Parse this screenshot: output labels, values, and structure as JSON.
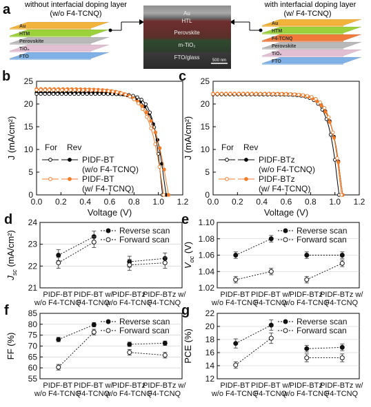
{
  "panel_a": {
    "label": "a",
    "left_caption": [
      "without interfacial doping layer",
      "(w/o F4-TCNQ)"
    ],
    "right_caption": [
      "with interfacial doping layer",
      "(w/  F4-TCNQ)"
    ],
    "left_layers": [
      "Au",
      "HTM",
      "Perovskite",
      "TiO₂",
      "FTO"
    ],
    "right_layers": [
      "Au",
      "HTM",
      "F4-TCNQ",
      "Perovskite",
      "TiO₂",
      "FTO"
    ],
    "sem_labels": [
      "Au",
      "HTL",
      "Perovskite",
      "m-TiO₂",
      "FTO/glass"
    ],
    "scale_bar": "500 nm",
    "colors": {
      "au": "#f2b33a",
      "htm": "#9bd13a",
      "f4tcnq": "#ef7a3a",
      "perovskite": "#b9b9b9",
      "tio2": "#e3bfd4",
      "fto": "#7fb1e6"
    }
  },
  "chart_data": [
    {
      "id": "b",
      "type": "line",
      "label": "b",
      "xlabel": "Voltage (V)",
      "ylabel": "J (mA/cm²)",
      "xlim": [
        0.0,
        1.2
      ],
      "ylim": [
        0,
        25
      ],
      "xticks": [
        "0.0",
        "0.2",
        "0.4",
        "0.6",
        "0.8",
        "1.0",
        "1.2"
      ],
      "yticks": [
        "0",
        "5",
        "10",
        "15",
        "20",
        "25"
      ],
      "legend_header": [
        "For",
        "Rev"
      ],
      "legend": [
        {
          "name_lines": [
            "PIDF-BT",
            "(w/o F4-TCNQ)"
          ],
          "color": "#000000"
        },
        {
          "name_lines": [
            "PIDF-BT",
            "(w/  F4-TCNQ)"
          ],
          "color": "#f07b28"
        }
      ],
      "series": [
        {
          "scan": "Rev",
          "group": 0,
          "marker": "filled",
          "color": "#000000",
          "jsc": 22.5,
          "voc": 1.06,
          "ff": 0.73
        },
        {
          "scan": "For",
          "group": 0,
          "marker": "open",
          "color": "#000000",
          "jsc": 22.2,
          "voc": 1.03,
          "ff": 0.6
        },
        {
          "scan": "Rev",
          "group": 1,
          "marker": "filled",
          "color": "#f07b28",
          "jsc": 23.3,
          "voc": 1.08,
          "ff": 0.8
        },
        {
          "scan": "For",
          "group": 1,
          "marker": "open",
          "color": "#f07b28",
          "jsc": 23.1,
          "voc": 1.04,
          "ff": 0.765
        }
      ]
    },
    {
      "id": "c",
      "type": "line",
      "label": "c",
      "xlabel": "Voltage (V)",
      "ylabel": "J (mA/cm²)",
      "xlim": [
        0.0,
        1.2
      ],
      "ylim": [
        0,
        25
      ],
      "xticks": [
        "0.0",
        "0.2",
        "0.4",
        "0.6",
        "0.8",
        "1.0",
        "1.2"
      ],
      "yticks": [
        "0",
        "5",
        "10",
        "15",
        "20",
        "25"
      ],
      "legend_header": [
        "For",
        "Rev"
      ],
      "legend": [
        {
          "name_lines": [
            "PIDF-BTz",
            "(w/o F4-TCNQ)"
          ],
          "color": "#000000"
        },
        {
          "name_lines": [
            "PIDF-BTz",
            "(w/  F4-TCNQ)"
          ],
          "color": "#f07b28"
        }
      ],
      "series": [
        {
          "scan": "Rev",
          "group": 0,
          "marker": "filled",
          "color": "#000000",
          "jsc": 22.2,
          "voc": 1.06,
          "ff": 0.7
        },
        {
          "scan": "For",
          "group": 0,
          "marker": "open",
          "color": "#000000",
          "jsc": 22.1,
          "voc": 1.03,
          "ff": 0.67
        },
        {
          "scan": "Rev",
          "group": 1,
          "marker": "filled",
          "color": "#f07b28",
          "jsc": 22.3,
          "voc": 1.06,
          "ff": 0.71
        },
        {
          "scan": "For",
          "group": 1,
          "marker": "open",
          "color": "#f07b28",
          "jsc": 22.2,
          "voc": 1.05,
          "ff": 0.66
        }
      ]
    },
    {
      "id": "d",
      "type": "scatter",
      "label": "d",
      "ylabel_main": "J",
      "ylabel_sub": "sc",
      "ylabel_rest": " (mA/cm²)",
      "ylim": [
        21,
        24
      ],
      "yticks": [
        "21",
        "22",
        "23",
        "24"
      ],
      "categories": [
        [
          "PIDF-BT",
          "w/o F4-TCNQ"
        ],
        [
          "PIDF-BT w/",
          "F4-TCNQ"
        ],
        [
          "PIDF-BTz",
          "w/o F4-TCNQ"
        ],
        [
          "PIDF-BTz w/",
          "F4-TCNQ"
        ]
      ],
      "series": [
        {
          "name": "Reverse scan",
          "marker": "filled",
          "values": [
            22.5,
            23.35,
            22.2,
            22.35
          ],
          "err": [
            0.25,
            0.25,
            0.25,
            0.25
          ]
        },
        {
          "name": "Forward scan",
          "marker": "open",
          "values": [
            22.15,
            23.1,
            22.05,
            22.15
          ],
          "err": [
            0.25,
            0.25,
            0.25,
            0.25
          ]
        }
      ]
    },
    {
      "id": "e",
      "type": "scatter",
      "label": "e",
      "ylabel_main": "V",
      "ylabel_sub": "oc",
      "ylabel_rest": " (V)",
      "ylim": [
        1.02,
        1.1
      ],
      "yticks": [
        "1.02",
        "1.04",
        "1.06",
        "1.08",
        "1.10"
      ],
      "categories": [
        [
          "PIDF-BT",
          "w/o F4-TCNQ"
        ],
        [
          "PIDF-BT w/",
          "F4-TCNQ"
        ],
        [
          "PIDF-BTz",
          "w/o F4-TCNQ"
        ],
        [
          "PIDF-BTz w/",
          "F4-TCNQ"
        ]
      ],
      "series": [
        {
          "name": "Reverse scan",
          "marker": "filled",
          "values": [
            1.06,
            1.08,
            1.06,
            1.06
          ],
          "err": [
            0.004,
            0.004,
            0.004,
            0.004
          ]
        },
        {
          "name": "Forward scan",
          "marker": "open",
          "values": [
            1.03,
            1.04,
            1.03,
            1.05
          ],
          "err": [
            0.004,
            0.004,
            0.004,
            0.004
          ]
        }
      ]
    },
    {
      "id": "f",
      "type": "scatter",
      "label": "f",
      "ylabel_main": "FF (%)",
      "ylabel_sub": "",
      "ylabel_rest": "",
      "ylim": [
        55,
        85
      ],
      "yticks": [
        "55",
        "60",
        "65",
        "70",
        "75",
        "80",
        "85"
      ],
      "categories": [
        [
          "PIDF-BT",
          "w/o F4-TCNQ"
        ],
        [
          "PIDF-BT w/",
          "F4-TCNQ"
        ],
        [
          "PIDF-BTz",
          "w/o F4-TCNQ"
        ],
        [
          "PIDF-BTz w/",
          "F4-TCNQ"
        ]
      ],
      "series": [
        {
          "name": "Reverse scan",
          "marker": "filled",
          "values": [
            73.0,
            79.8,
            70.8,
            71.3
          ],
          "err": [
            1.0,
            1.0,
            1.0,
            1.0
          ]
        },
        {
          "name": "Forward scan",
          "marker": "open",
          "values": [
            60.3,
            76.4,
            67.1,
            65.8
          ],
          "err": [
            1.3,
            1.3,
            1.3,
            1.3
          ]
        }
      ]
    },
    {
      "id": "g",
      "type": "scatter",
      "label": "g",
      "ylabel_main": "PCE (%)",
      "ylabel_sub": "",
      "ylabel_rest": "",
      "ylim": [
        12,
        22
      ],
      "yticks": [
        "12",
        "14",
        "16",
        "18",
        "20",
        "22"
      ],
      "categories": [
        [
          "PIDF-BT",
          "w/o F4-TCNQ"
        ],
        [
          "PIDF-BT w/",
          "F4-TCNQ"
        ],
        [
          "PIDF-BTz",
          "w/o F4-TCNQ"
        ],
        [
          "PIDF-BTz w/",
          "F4-TCNQ"
        ]
      ],
      "series": [
        {
          "name": "Reverse scan",
          "marker": "filled",
          "values": [
            17.4,
            20.2,
            16.6,
            16.8
          ],
          "err": [
            0.7,
            0.8,
            0.5,
            0.5
          ]
        },
        {
          "name": "Forward scan",
          "marker": "open",
          "values": [
            14.1,
            18.2,
            15.2,
            15.2
          ],
          "err": [
            0.5,
            0.8,
            0.6,
            0.6
          ]
        }
      ]
    }
  ]
}
